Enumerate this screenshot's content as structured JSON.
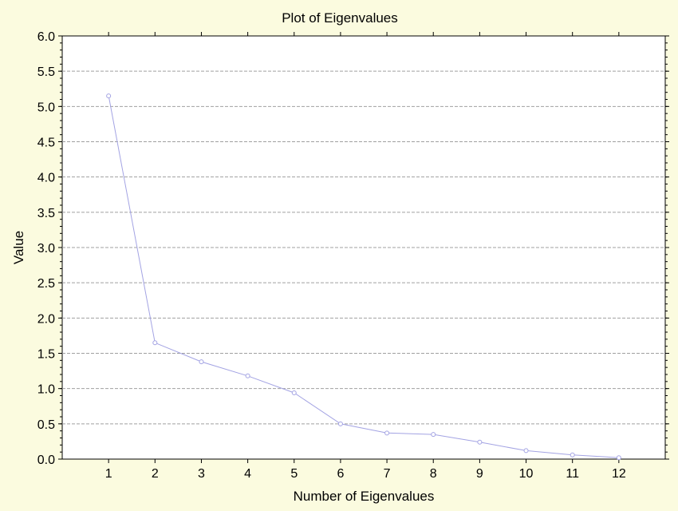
{
  "chart_data": {
    "type": "line",
    "title": "Plot of Eigenvalues",
    "xlabel": "Number of Eigenvalues",
    "ylabel": "Value",
    "x": [
      1,
      2,
      3,
      4,
      5,
      6,
      7,
      8,
      9,
      10,
      11,
      12
    ],
    "x_tick_labels": [
      "1",
      "2",
      "3",
      "4",
      "5",
      "6",
      "7",
      "8",
      "9",
      "10",
      "11",
      "12"
    ],
    "xlim": [
      0,
      13
    ],
    "y_tick_labels": [
      "0.0",
      "0.5",
      "1.0",
      "1.5",
      "2.0",
      "2.5",
      "3.0",
      "3.5",
      "4.0",
      "4.5",
      "5.0",
      "5.5",
      "6.0"
    ],
    "ylim": [
      0,
      6
    ],
    "grid": "horizontal dashed",
    "legend": "none",
    "series": [
      {
        "values": [
          5.15,
          1.65,
          1.38,
          1.18,
          0.94,
          0.5,
          0.37,
          0.35,
          0.24,
          0.12,
          0.06,
          0.02
        ],
        "marker": "circle",
        "color": "#a3a3e3"
      }
    ],
    "colors": {
      "background": "#fbfbdf",
      "plot_area": "#ffffff",
      "grid": "#a0a0a0",
      "line": "#a3a3e3"
    }
  }
}
